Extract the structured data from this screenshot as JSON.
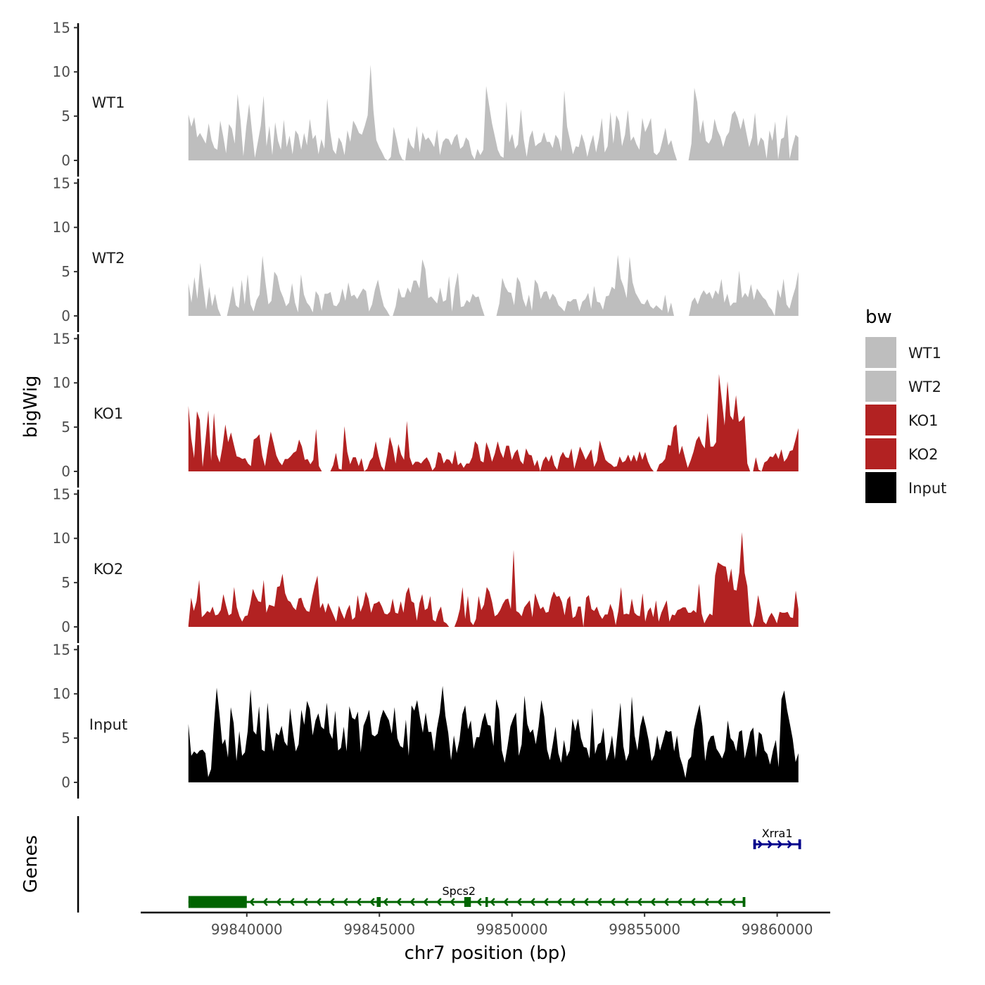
{
  "chart_data": {
    "type": "area",
    "ylabel": "bigWig",
    "genes_label": "Genes",
    "xlabel": "chr7 position (bp)",
    "xlim": [
      99836000,
      99862000
    ],
    "x_ticks": [
      99840000,
      99845000,
      99850000,
      99855000,
      99860000
    ],
    "x_tick_labels": [
      "99840000",
      "99845000",
      "99850000",
      "99855000",
      "99860000"
    ],
    "ylim": [
      0,
      15.5
    ],
    "y_ticks": [
      0,
      5,
      10,
      15
    ],
    "y_tick_labels": [
      "0",
      "5",
      "10",
      "15"
    ],
    "data_range": [
      99837800,
      99860800
    ],
    "legend": {
      "title": "bw",
      "items": [
        {
          "label": "WT1",
          "color": "#bebebe"
        },
        {
          "label": "WT2",
          "color": "#bebebe"
        },
        {
          "label": "KO1",
          "color": "#b22222"
        },
        {
          "label": "KO2",
          "color": "#b22222"
        },
        {
          "label": "Input",
          "color": "#000000"
        }
      ]
    },
    "series": [
      {
        "name": "WT1",
        "color": "#bebebe",
        "values": [
          5.2,
          3.8,
          4.9,
          2.6,
          3.1,
          2.5,
          1.9,
          4.2,
          2.3,
          1.4,
          1.2,
          4.5,
          2.8,
          0.8,
          4.1,
          3.6,
          1.9,
          7.5,
          4.6,
          0.5,
          3.8,
          6.4,
          3.3,
          0.3,
          2.1,
          3.9,
          7.3,
          1.6,
          3.9,
          0.6,
          4.3,
          2.2,
          1.2,
          4.6,
          1.5,
          2.8,
          0.7,
          3.4,
          2.9,
          1.2,
          3.1,
          1.7,
          4.7,
          2.4,
          2.9,
          0.7,
          2.4,
          1.3,
          7.0,
          3.3,
          1.2,
          0.7,
          2.6,
          2.0,
          0.6,
          3.4,
          2.1,
          4.5,
          3.9,
          3.1,
          2.9,
          3.9,
          5.1,
          10.8,
          5.6,
          2.3,
          1.5,
          0.9,
          0.2,
          0.0,
          0.4,
          3.8,
          2.4,
          0.8,
          0.1,
          0.0,
          2.6,
          1.7,
          1.3,
          3.9,
          0.9,
          3.2,
          2.3,
          2.6,
          2.1,
          1.5,
          3.5,
          0.6,
          2.1,
          2.5,
          2.4,
          1.7,
          2.6,
          3.0,
          1.3,
          1.6,
          2.6,
          2.2,
          0.7,
          0.1,
          1.3,
          0.6,
          1.2,
          8.4,
          6.3,
          4.2,
          2.7,
          1.2,
          0.5,
          0.3,
          6.7,
          2.0,
          3.0,
          1.3,
          1.8,
          5.8,
          2.4,
          0.4,
          2.6,
          3.4,
          1.6,
          1.9,
          2.1,
          3.2,
          2.1,
          2.1,
          1.4,
          2.9,
          2.4,
          1.0,
          7.9,
          3.8,
          2.3,
          0.7,
          1.6,
          1.5,
          3.0,
          2.0,
          0.4,
          1.8,
          2.9,
          0.9,
          2.5,
          4.8,
          0.9,
          1.6,
          5.5,
          1.9,
          5.1,
          4.4,
          1.6,
          2.9,
          5.7,
          2.2,
          2.7,
          1.8,
          1.2,
          4.8,
          3.2,
          3.9,
          4.8,
          0.9,
          0.6,
          1.0,
          2.3,
          3.7,
          1.7,
          2.3,
          1.0,
          0.0,
          0.0,
          0.0,
          0.0,
          0.0,
          1.9,
          8.2,
          6.6,
          3.0,
          4.6,
          2.2,
          1.9,
          2.5,
          4.7,
          3.4,
          2.7,
          1.5,
          2.7,
          3.2,
          5.2,
          5.6,
          4.8,
          3.5,
          4.8,
          3.1,
          1.5,
          2.6,
          5.4,
          1.6,
          2.6,
          2.2,
          0.2,
          3.4,
          2.2,
          4.4,
          0.1,
          2.4,
          2.6,
          5.2,
          0.2,
          1.7,
          2.9,
          2.6
        ]
      },
      {
        "name": "WT2",
        "color": "#bebebe",
        "values": [
          3.7,
          1.5,
          4.4,
          1.9,
          6.0,
          3.3,
          0.7,
          3.3,
          1.1,
          2.5,
          0.8,
          0.0,
          0.0,
          0.0,
          1.5,
          3.4,
          1.2,
          0.9,
          4.1,
          1.3,
          4.7,
          1.3,
          0.5,
          1.8,
          2.4,
          6.8,
          3.8,
          1.3,
          1.7,
          5.0,
          4.5,
          2.9,
          2.1,
          1.1,
          1.5,
          3.7,
          1.5,
          0.4,
          4.7,
          2.4,
          1.5,
          1.1,
          0.4,
          2.8,
          2.3,
          0.6,
          2.5,
          2.5,
          2.7,
          1.2,
          1.1,
          1.6,
          3.1,
          1.7,
          3.8,
          2.2,
          2.4,
          1.9,
          2.5,
          3.1,
          2.8,
          0.5,
          1.3,
          3.0,
          4.1,
          2.4,
          1.1,
          0.6,
          0.0,
          0.0,
          1.1,
          3.2,
          2.1,
          2.1,
          3.2,
          2.6,
          4.0,
          4.0,
          3.1,
          6.4,
          5.3,
          2.0,
          2.2,
          1.8,
          1.4,
          3.2,
          1.6,
          1.8,
          4.5,
          0.5,
          3.2,
          4.9,
          1.0,
          1.1,
          1.8,
          1.5,
          2.5,
          2.1,
          2.2,
          1.0,
          0.0,
          0.0,
          0.0,
          0.0,
          0.0,
          1.4,
          4.3,
          3.3,
          2.7,
          2.6,
          1.2,
          4.4,
          3.8,
          1.9,
          1.0,
          2.4,
          0.6,
          4.1,
          3.6,
          1.9,
          2.7,
          2.8,
          1.8,
          2.5,
          2.1,
          1.2,
          0.9,
          0.5,
          1.7,
          1.6,
          1.9,
          1.9,
          0.5,
          1.6,
          1.9,
          2.6,
          0.8,
          3.4,
          1.6,
          1.5,
          0.7,
          2.2,
          2.3,
          3.3,
          3.0,
          6.9,
          4.2,
          3.3,
          2.0,
          6.7,
          3.8,
          2.6,
          2.0,
          1.4,
          1.3,
          1.9,
          1.1,
          0.8,
          1.2,
          0.9,
          0.6,
          2.4,
          0.3,
          1.5,
          0.0,
          0.0,
          0.0,
          0.0,
          0.0,
          0.0,
          1.6,
          2.1,
          1.3,
          2.3,
          2.9,
          2.4,
          2.7,
          1.9,
          2.9,
          2.4,
          4.2,
          1.5,
          2.5,
          1.1,
          1.5,
          1.5,
          5.1,
          2.0,
          2.6,
          2.1,
          3.6,
          1.8,
          3.1,
          2.6,
          2.1,
          1.8,
          1.1,
          0.7,
          0.0,
          3.0,
          2.0,
          4.2,
          1.3,
          0.8,
          2.1,
          3.2,
          5.0
        ]
      },
      {
        "name": "KO1",
        "color": "#b22222",
        "values": [
          7.4,
          3.7,
          1.5,
          6.8,
          5.8,
          0.5,
          3.5,
          6.9,
          1.2,
          6.6,
          1.9,
          1.0,
          2.8,
          5.3,
          3.3,
          4.4,
          3.0,
          1.7,
          1.6,
          1.4,
          1.5,
          0.9,
          0.6,
          3.6,
          3.8,
          4.2,
          1.8,
          0.6,
          2.7,
          4.5,
          3.2,
          1.8,
          1.1,
          0.7,
          1.4,
          1.4,
          1.7,
          2.1,
          2.3,
          3.6,
          2.8,
          1.3,
          1.4,
          0.8,
          1.3,
          4.8,
          0.6,
          0.0,
          0.0,
          0.0,
          0.0,
          0.7,
          2.1,
          0.3,
          0.2,
          5.1,
          2.2,
          0.8,
          1.6,
          1.6,
          0.6,
          1.5,
          0.0,
          0.3,
          1.2,
          1.6,
          3.4,
          1.8,
          0.6,
          0.1,
          1.8,
          3.9,
          2.7,
          0.9,
          3.1,
          1.9,
          1.3,
          5.7,
          1.6,
          0.7,
          1.1,
          1.1,
          0.9,
          1.3,
          1.6,
          1.0,
          0.1,
          0.5,
          2.2,
          2.0,
          0.9,
          1.4,
          1.3,
          0.8,
          2.4,
          0.7,
          1.0,
          0.4,
          0.9,
          0.9,
          1.6,
          3.4,
          3.0,
          1.2,
          1.0,
          3.3,
          2.4,
          1.1,
          2.0,
          3.4,
          2.2,
          1.5,
          2.9,
          2.9,
          1.3,
          2.1,
          2.5,
          1.2,
          0.8,
          2.6,
          1.9,
          1.8,
          0.6,
          1.3,
          0.0,
          1.2,
          1.7,
          1.1,
          1.9,
          0.7,
          0.2,
          1.6,
          2.2,
          1.6,
          1.5,
          2.6,
          0.3,
          1.5,
          2.8,
          2.1,
          1.3,
          1.9,
          2.5,
          0.5,
          1.2,
          3.5,
          2.4,
          1.3,
          1.0,
          0.8,
          0.5,
          0.6,
          1.7,
          1.0,
          1.2,
          1.9,
          1.1,
          1.9,
          1.1,
          2.3,
          1.3,
          2.2,
          1.1,
          0.4,
          0.0,
          0.0,
          0.8,
          1.0,
          1.4,
          3.0,
          2.9,
          5.0,
          5.3,
          1.9,
          2.9,
          1.6,
          0.4,
          1.2,
          2.2,
          3.5,
          4.0,
          3.1,
          2.6,
          6.6,
          2.8,
          2.8,
          3.3,
          11.0,
          8.1,
          5.2,
          10.2,
          6.3,
          5.8,
          8.6,
          5.6,
          5.8,
          6.3,
          0.9,
          0.0,
          0.0,
          1.6,
          0.2,
          0.0,
          1.0,
          1.2,
          1.7,
          1.6,
          2.1,
          1.4,
          2.5,
          1.1,
          1.5,
          2.3,
          2.4,
          3.6,
          4.9
        ]
      },
      {
        "name": "KO2",
        "color": "#b22222",
        "values": [
          0.2,
          3.3,
          1.8,
          2.9,
          5.3,
          1.1,
          1.4,
          1.8,
          1.6,
          2.3,
          1.3,
          1.4,
          1.9,
          3.7,
          2.4,
          1.3,
          1.5,
          4.5,
          2.2,
          1.2,
          0.6,
          1.2,
          1.3,
          2.6,
          4.3,
          3.5,
          2.9,
          2.8,
          5.3,
          1.6,
          2.5,
          2.4,
          2.3,
          4.5,
          4.6,
          6.0,
          3.8,
          3.0,
          2.8,
          2.2,
          1.9,
          3.2,
          3.3,
          2.3,
          1.8,
          1.7,
          3.3,
          4.7,
          5.8,
          2.1,
          2.7,
          1.6,
          2.7,
          2.0,
          1.3,
          0.6,
          2.4,
          1.6,
          0.9,
          1.9,
          2.5,
          0.8,
          1.1,
          3.6,
          1.7,
          2.5,
          4.0,
          3.2,
          1.6,
          2.6,
          2.7,
          2.9,
          2.3,
          1.5,
          1.4,
          1.7,
          3.2,
          1.6,
          1.5,
          2.9,
          1.6,
          3.8,
          4.5,
          2.9,
          2.7,
          0.7,
          2.7,
          3.7,
          1.9,
          2.1,
          3.5,
          0.8,
          0.6,
          1.7,
          2.3,
          0.6,
          0.4,
          0.0,
          0.0,
          0.0,
          0.8,
          2.0,
          4.5,
          0.9,
          3.5,
          0.6,
          0.2,
          0.9,
          3.5,
          1.9,
          2.5,
          4.5,
          4.0,
          2.8,
          1.2,
          1.4,
          1.9,
          2.6,
          3.1,
          3.2,
          2.0,
          8.7,
          1.8,
          1.6,
          1.2,
          2.2,
          2.6,
          3.0,
          1.1,
          3.8,
          2.9,
          2.0,
          2.3,
          1.6,
          1.7,
          3.2,
          4.0,
          3.4,
          3.5,
          2.8,
          1.3,
          3.1,
          3.5,
          1.0,
          1.2,
          2.3,
          2.3,
          0.0,
          3.3,
          3.6,
          2.0,
          1.8,
          2.3,
          1.4,
          0.9,
          1.4,
          1.4,
          2.6,
          1.8,
          0.2,
          1.8,
          4.5,
          1.4,
          1.5,
          1.4,
          3.2,
          1.6,
          1.3,
          1.2,
          3.8,
          0.6,
          1.8,
          2.2,
          1.1,
          3.0,
          0.6,
          1.6,
          2.3,
          3.0,
          0.6,
          1.4,
          1.3,
          1.9,
          2.0,
          2.2,
          2.2,
          1.6,
          1.6,
          1.9,
          1.6,
          4.9,
          1.5,
          0.4,
          1.0,
          1.5,
          1.3,
          5.8,
          7.3,
          7.1,
          6.9,
          6.8,
          5.0,
          6.6,
          4.2,
          4.1,
          6.2,
          10.7,
          6.1,
          4.6,
          0.5,
          0.0,
          1.3,
          3.6,
          2.1,
          0.6,
          0.3,
          1.1,
          1.6,
          1.1,
          0.4,
          1.7,
          1.6,
          1.6,
          1.7,
          1.1,
          1.0,
          4.1,
          2.0
        ]
      },
      {
        "name": "Input",
        "color": "#000000",
        "values": [
          6.6,
          3.0,
          3.5,
          3.2,
          3.6,
          3.7,
          3.3,
          0.6,
          1.5,
          6.5,
          10.7,
          7.7,
          4.3,
          4.9,
          2.8,
          8.5,
          6.7,
          2.4,
          5.8,
          3.0,
          3.4,
          5.8,
          10.5,
          5.8,
          5.4,
          8.6,
          3.7,
          3.5,
          9.0,
          5.6,
          3.5,
          5.6,
          5.3,
          6.4,
          4.6,
          4.1,
          8.4,
          5.8,
          3.5,
          4.3,
          8.2,
          6.5,
          9.2,
          8.3,
          5.3,
          7.0,
          7.8,
          6.3,
          6.0,
          9.0,
          5.6,
          4.9,
          8.1,
          3.6,
          3.9,
          6.3,
          3.5,
          8.6,
          7.3,
          7.1,
          8.0,
          3.4,
          6.4,
          7.2,
          8.2,
          5.4,
          5.2,
          5.5,
          7.2,
          8.2,
          7.6,
          7.0,
          5.5,
          8.5,
          5.0,
          4.1,
          3.9,
          7.1,
          3.0,
          8.7,
          8.1,
          9.3,
          7.3,
          5.6,
          7.9,
          5.7,
          5.7,
          3.5,
          6.1,
          7.9,
          10.9,
          7.5,
          5.6,
          2.5,
          5.3,
          3.3,
          4.8,
          7.7,
          8.7,
          6.0,
          7.0,
          3.8,
          5.1,
          5.1,
          6.9,
          7.9,
          6.5,
          6.4,
          4.1,
          9.4,
          8.2,
          3.6,
          2.2,
          4.1,
          6.3,
          7.2,
          7.9,
          3.0,
          4.3,
          9.8,
          6.6,
          5.6,
          6.0,
          4.3,
          6.3,
          9.3,
          7.4,
          3.7,
          2.5,
          4.3,
          6.3,
          3.3,
          2.2,
          4.8,
          2.9,
          3.6,
          7.2,
          5.8,
          7.2,
          5.0,
          4.0,
          3.9,
          2.7,
          8.4,
          3.2,
          4.3,
          4.5,
          6.2,
          2.4,
          3.4,
          5.3,
          2.6,
          5.8,
          9.0,
          4.1,
          2.4,
          3.3,
          9.7,
          5.3,
          3.6,
          6.3,
          7.6,
          6.3,
          4.7,
          2.4,
          3.1,
          5.3,
          3.6,
          4.7,
          5.9,
          5.7,
          5.8,
          3.5,
          5.3,
          2.9,
          1.9,
          0.5,
          2.5,
          2.9,
          6.0,
          7.5,
          8.8,
          6.4,
          2.4,
          4.5,
          5.2,
          5.3,
          3.8,
          3.3,
          2.7,
          3.6,
          7.0,
          5.0,
          4.6,
          3.5,
          5.7,
          5.9,
          2.7,
          4.1,
          5.7,
          6.2,
          2.8,
          5.7,
          5.4,
          3.6,
          3.2,
          2.0,
          3.6,
          4.8,
          1.7,
          9.4,
          10.4,
          8.2,
          6.6,
          4.9,
          2.3,
          3.3
        ]
      }
    ],
    "genes": [
      {
        "name": "Spcs2",
        "strand": "-",
        "start": 99837800,
        "end": 99858800,
        "color": "#006400",
        "exons": [
          [
            99837800,
            99840000
          ],
          [
            99844900,
            99845050
          ],
          [
            99848200,
            99848450
          ],
          [
            99849000,
            99849080
          ],
          [
            99858700,
            99858800
          ]
        ]
      },
      {
        "name": "Xrra1",
        "strand": "+",
        "start": 99859100,
        "end": 99860900,
        "color": "#00008b",
        "exons": [
          [
            99859100,
            99859200
          ],
          [
            99860800,
            99860900
          ]
        ]
      }
    ]
  }
}
